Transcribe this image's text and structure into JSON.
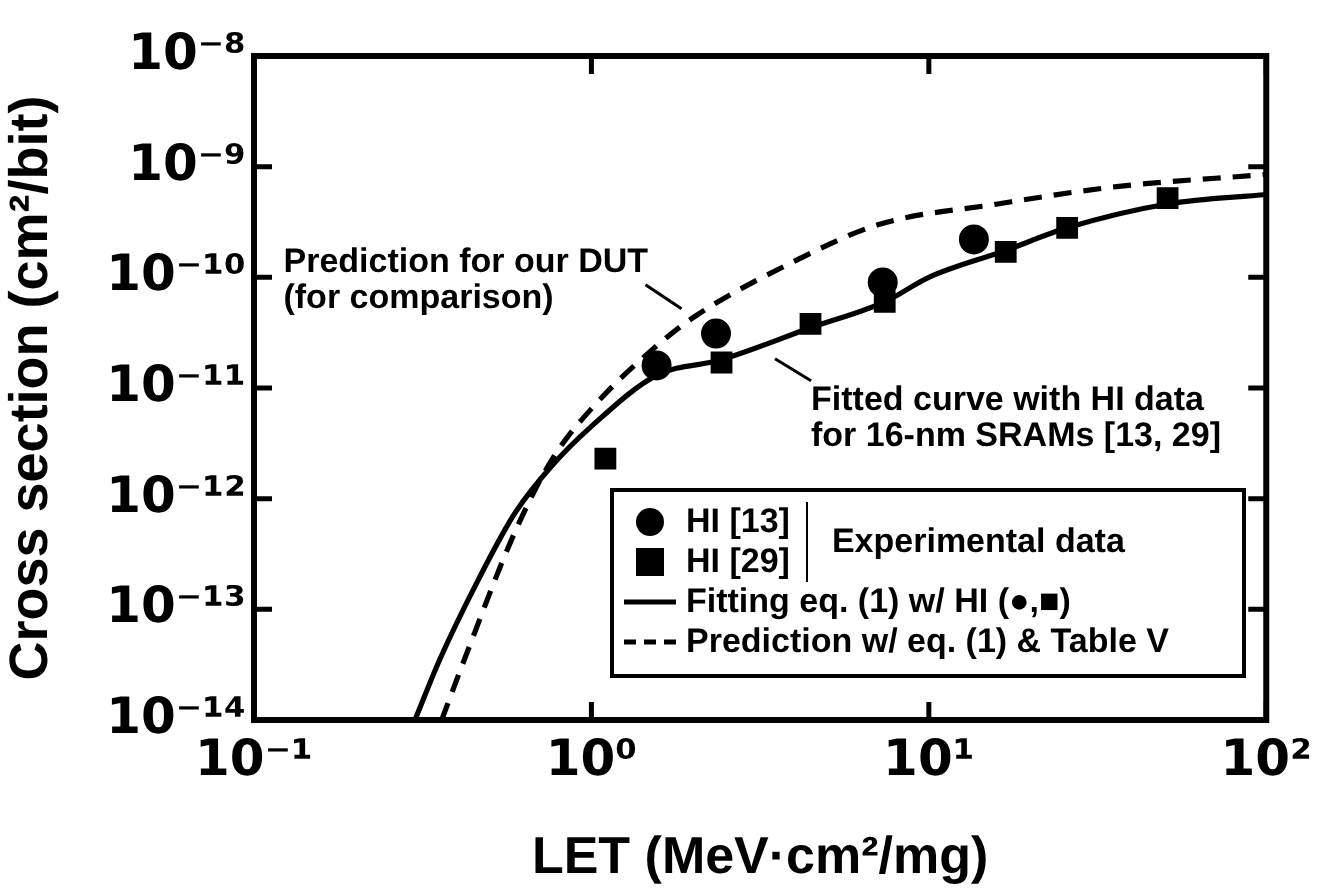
{
  "chart_data": {
    "type": "scatter",
    "xlabel": "LET (MeV·cm²/mg)",
    "ylabel": "Cross section (cm²/bit)",
    "log": "xy",
    "xlim": [
      0.1,
      100
    ],
    "ylim": [
      1e-14,
      1e-08
    ],
    "xticks": [
      {
        "value": 0.1,
        "label": "10⁻¹"
      },
      {
        "value": 1,
        "label": "10⁰"
      },
      {
        "value": 10,
        "label": "10¹"
      },
      {
        "value": 100,
        "label": "10²"
      }
    ],
    "yticks": [
      {
        "value": 1e-14,
        "label": "10⁻¹⁴"
      },
      {
        "value": 1e-13,
        "label": "10⁻¹³"
      },
      {
        "value": 1e-12,
        "label": "10⁻¹²"
      },
      {
        "value": 1e-11,
        "label": "10⁻¹¹"
      },
      {
        "value": 1e-10,
        "label": "10⁻¹⁰"
      },
      {
        "value": 1e-09,
        "label": "10⁻⁹"
      },
      {
        "value": 1e-08,
        "label": "10⁻⁸"
      }
    ],
    "grid": false,
    "legend": "bottom right",
    "legend_title": "Experimental data",
    "series": [
      {
        "name": "HI [13]",
        "type": "scatter",
        "marker": "circle",
        "color": "#000000",
        "x": [
          1.56,
          2.34,
          7.3,
          13.6
        ],
        "values": [
          1.6e-11,
          3.1e-11,
          9e-11,
          2.2e-10
        ]
      },
      {
        "name": "HI [29]",
        "type": "scatter",
        "marker": "square",
        "color": "#000000",
        "x": [
          1.1,
          2.43,
          4.46,
          7.4,
          16.9,
          25.7,
          51
        ],
        "values": [
          2.3e-12,
          1.7e-11,
          3.8e-11,
          6e-11,
          1.7e-10,
          2.8e-10,
          5.2e-10
        ]
      },
      {
        "name": "Fitting eq. (1) w/ HI (●,■)",
        "type": "line",
        "line_style": "solid",
        "marker": "none",
        "color": "#000000",
        "x": [
          0.3,
          0.355,
          0.46,
          0.59,
          0.76,
          1.0,
          1.56,
          2.43,
          4.46,
          7.4,
          10,
          16.9,
          25.7,
          51,
          100
        ],
        "values": [
          1e-14,
          3.5e-14,
          1.8e-13,
          7.2e-13,
          1.95e-12,
          4.5e-12,
          1.3e-11,
          1.8e-11,
          3.5e-11,
          6e-11,
          1e-10,
          1.75e-10,
          2.8e-10,
          4.6e-10,
          5.6e-10
        ]
      },
      {
        "name": "Prediction w/ eq. (1) & Table V",
        "type": "line",
        "line_style": "dashed",
        "marker": "none",
        "color": "#000000",
        "x": [
          0.36,
          0.42,
          0.59,
          0.76,
          1.0,
          1.56,
          2.04,
          4.0,
          7.1,
          16,
          36,
          100
        ],
        "values": [
          1e-14,
          3.5e-14,
          4.8e-13,
          2.2e-12,
          6.5e-12,
          2.4e-11,
          4.5e-11,
          1.4e-10,
          3e-10,
          4.6e-10,
          6.6e-10,
          8.5e-10
        ]
      }
    ],
    "annotations": [
      {
        "text": "Prediction for our DUT\n(for comparison)",
        "x": 1.9,
        "y": 5e-11
      },
      {
        "text": "Fitted curve with HI data\nfor 16-nm SRAMs [13, 29]",
        "x": 3.36,
        "y": 2e-11
      }
    ]
  }
}
